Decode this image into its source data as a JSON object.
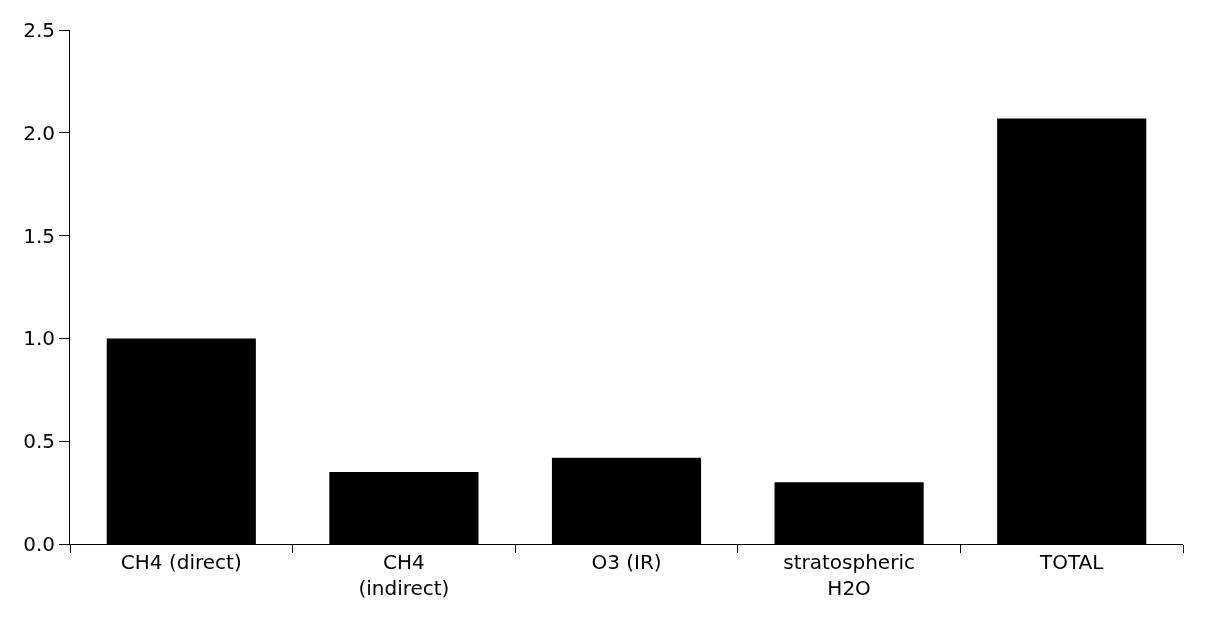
{
  "chart_data": {
    "type": "bar",
    "categories": [
      "CH4 (direct)",
      "CH4\n(indirect)",
      "O3 (IR)",
      "stratospheric\nH2O",
      "TOTAL"
    ],
    "values": [
      1.0,
      0.35,
      0.42,
      0.3,
      2.07
    ],
    "color": "#000000",
    "ylim": [
      0,
      2.5
    ],
    "yticks": [
      {
        "value": 0,
        "label": "0.0"
      },
      {
        "value": 0.5,
        "label": "0.5"
      },
      {
        "value": 1,
        "label": "1.0"
      },
      {
        "value": 1.5,
        "label": "1.5"
      },
      {
        "value": 2,
        "label": "2.0"
      },
      {
        "value": 2.5,
        "label": "2.5"
      }
    ]
  }
}
